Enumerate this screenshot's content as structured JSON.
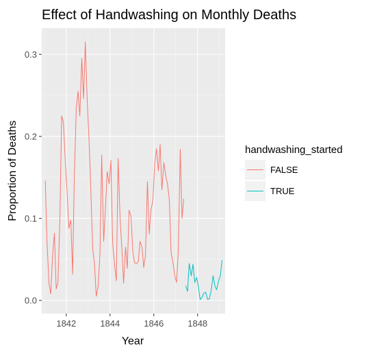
{
  "chart_data": {
    "type": "line",
    "title": "Effect of Handwashing on Monthly Deaths",
    "xlabel": "Year",
    "ylabel": "Proportion of Deaths",
    "x_ticks": [
      {
        "value": 1842,
        "label": "1842"
      },
      {
        "value": 1844,
        "label": "1844"
      },
      {
        "value": 1846,
        "label": "1846"
      },
      {
        "value": 1848,
        "label": "1848"
      }
    ],
    "y_ticks": [
      {
        "value": 0.0,
        "label": "0.0"
      },
      {
        "value": 0.1,
        "label": "0.1"
      },
      {
        "value": 0.2,
        "label": "0.2"
      },
      {
        "value": 0.3,
        "label": "0.3"
      }
    ],
    "xlim": [
      1840.88,
      1849.26
    ],
    "ylim": [
      -0.016,
      0.332
    ],
    "grid": true,
    "legend": {
      "title": "handwashing_started",
      "position": "right",
      "entries": [
        {
          "label": "FALSE",
          "color": "#F8766D"
        },
        {
          "label": "TRUE",
          "color": "#00BFC4"
        }
      ]
    },
    "series": [
      {
        "name": "FALSE",
        "color": "#F8766D",
        "x": [
          1841.04,
          1841.12,
          1841.21,
          1841.29,
          1841.37,
          1841.46,
          1841.54,
          1841.62,
          1841.71,
          1841.79,
          1841.87,
          1841.96,
          1842.04,
          1842.12,
          1842.21,
          1842.29,
          1842.37,
          1842.46,
          1842.54,
          1842.62,
          1842.71,
          1842.79,
          1842.87,
          1842.96,
          1843.04,
          1843.12,
          1843.21,
          1843.29,
          1843.37,
          1843.46,
          1843.54,
          1843.62,
          1843.71,
          1843.79,
          1843.87,
          1843.96,
          1844.04,
          1844.12,
          1844.21,
          1844.29,
          1844.37,
          1844.46,
          1844.54,
          1844.62,
          1844.71,
          1844.79,
          1844.87,
          1844.96,
          1845.04,
          1845.12,
          1845.21,
          1845.29,
          1845.37,
          1845.46,
          1845.54,
          1845.62,
          1845.71,
          1845.79,
          1845.87,
          1845.96,
          1846.04,
          1846.12,
          1846.21,
          1846.29,
          1846.37,
          1846.46,
          1846.54,
          1846.62,
          1846.71,
          1846.79,
          1846.87,
          1846.96,
          1847.04,
          1847.12,
          1847.21,
          1847.29,
          1847.37
        ],
        "y": [
          0.146,
          0.072,
          0.021,
          0.008,
          0.052,
          0.082,
          0.014,
          0.022,
          0.099,
          0.225,
          0.217,
          0.168,
          0.131,
          0.088,
          0.098,
          0.032,
          0.152,
          0.235,
          0.255,
          0.225,
          0.295,
          0.246,
          0.315,
          0.243,
          0.196,
          0.137,
          0.062,
          0.045,
          0.005,
          0.018,
          0.057,
          0.177,
          0.072,
          0.112,
          0.157,
          0.142,
          0.171,
          0.07,
          0.043,
          0.024,
          0.173,
          0.1,
          0.064,
          0.021,
          0.065,
          0.039,
          0.11,
          0.103,
          0.06,
          0.046,
          0.045,
          0.047,
          0.072,
          0.065,
          0.04,
          0.055,
          0.145,
          0.081,
          0.11,
          0.122,
          0.166,
          0.185,
          0.158,
          0.19,
          0.135,
          0.168,
          0.153,
          0.143,
          0.123,
          0.058,
          0.047,
          0.03,
          0.022,
          0.06,
          0.184,
          0.1,
          0.124
        ]
      },
      {
        "name": "TRUE",
        "color": "#00BFC4",
        "x": [
          1847.46,
          1847.54,
          1847.62,
          1847.71,
          1847.79,
          1847.87,
          1847.96,
          1848.04,
          1848.12,
          1848.21,
          1848.29,
          1848.37,
          1848.46,
          1848.54,
          1848.62,
          1848.71,
          1848.79,
          1848.87,
          1848.96,
          1849.04,
          1849.12
        ],
        "y": [
          0.018,
          0.011,
          0.045,
          0.03,
          0.044,
          0.022,
          0.028,
          0.016,
          0.001,
          0.004,
          0.009,
          0.01,
          0.001,
          0.002,
          0.012,
          0.03,
          0.018,
          0.013,
          0.024,
          0.03,
          0.049
        ]
      }
    ]
  }
}
